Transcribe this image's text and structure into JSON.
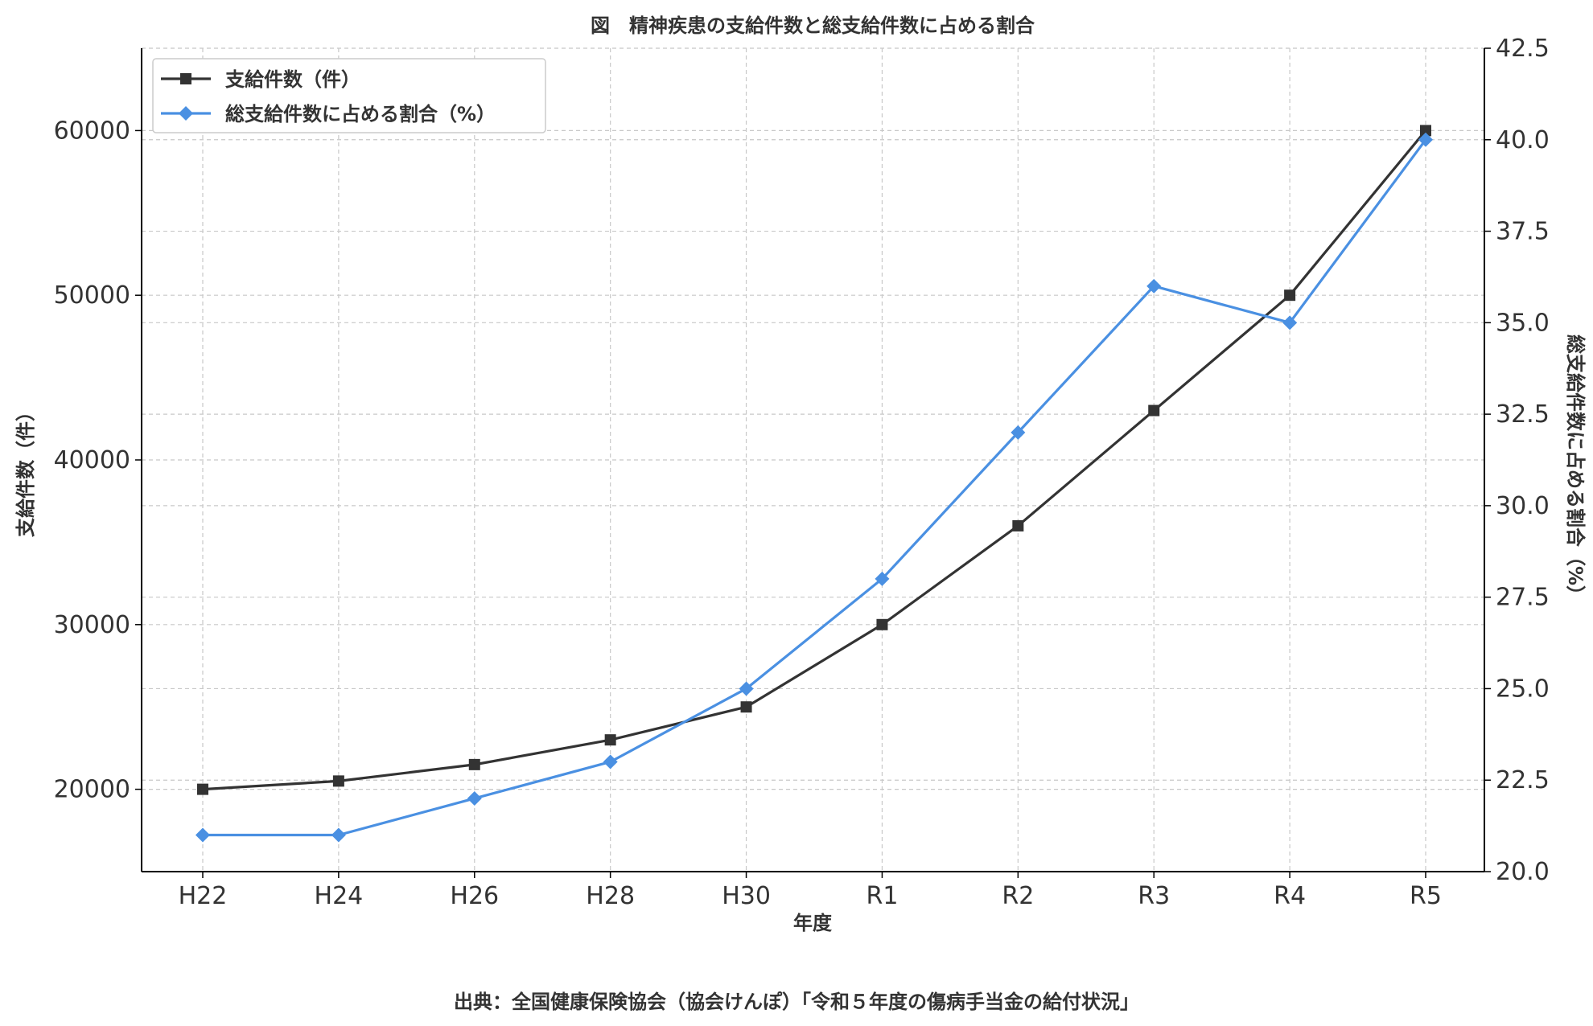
{
  "chart_data": {
    "type": "line",
    "title": "図　精神疾患の支給件数と総支給件数に占める割合",
    "xlabel": "年度",
    "ylabel": "支給件数（件）",
    "y2label": "総支給件数に占める割合（%）",
    "source": "出典：全国健康保険協会（協会けんぽ）「令和５年度の傷病手当金の給付状況」",
    "categories": [
      "H22",
      "H24",
      "H26",
      "H28",
      "H30",
      "R1",
      "R2",
      "R3",
      "R4",
      "R5"
    ],
    "ylim": [
      15000,
      65000
    ],
    "y_ticks": [
      20000,
      30000,
      40000,
      50000,
      60000
    ],
    "y2lim": [
      20.0,
      42.5
    ],
    "y2_ticks": [
      20.0,
      22.5,
      25.0,
      27.5,
      30.0,
      32.5,
      35.0,
      37.5,
      40.0,
      42.5
    ],
    "grid": true,
    "legend_position": "top-left",
    "series": [
      {
        "name": "支給件数（件）",
        "axis": "left",
        "marker": "square",
        "color": "#333333",
        "values": [
          20000,
          20500,
          21500,
          23000,
          25000,
          30000,
          36000,
          43000,
          50000,
          60000
        ]
      },
      {
        "name": "総支給件数に占める割合（%）",
        "axis": "right",
        "marker": "diamond",
        "color": "#4a90e2",
        "values": [
          21.0,
          21.0,
          22.0,
          23.0,
          25.0,
          28.0,
          32.0,
          36.0,
          35.0,
          40.0
        ]
      }
    ]
  }
}
